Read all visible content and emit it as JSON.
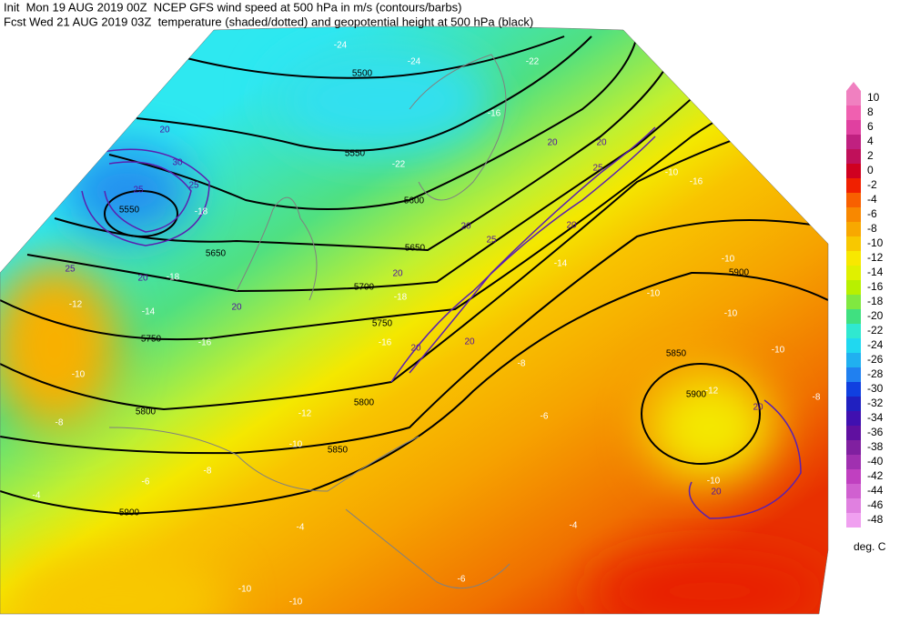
{
  "header": {
    "line1": "Init  Mon 19 AUG 2019 00Z  NCEP GFS wind speed at 500 hPa in m/s (contours/barbs)",
    "line2": "Fcst Wed 21 AUG 2019 03Z  temperature (shaded/dotted) and geopotential height at 500 hPa (black)"
  },
  "colorbar": {
    "labels": [
      10,
      8,
      6,
      4,
      2,
      0,
      -2,
      -4,
      -6,
      -8,
      -10,
      -12,
      -14,
      -16,
      -18,
      -20,
      -22,
      -24,
      -26,
      -28,
      -30,
      -32,
      -34,
      -36,
      -38,
      -40,
      -42,
      -44,
      -46,
      -48
    ],
    "colors": [
      "#f080c0",
      "#f060b0",
      "#e040a0",
      "#c02080",
      "#c0105a",
      "#d00020",
      "#f02000",
      "#f86000",
      "#f88800",
      "#f8a800",
      "#f8c800",
      "#f8e800",
      "#e0f000",
      "#b8f000",
      "#80e840",
      "#40e080",
      "#30e8d0",
      "#20d8f0",
      "#20b0f0",
      "#2080f0",
      "#1040e0",
      "#2020c0",
      "#4010b0",
      "#6010a0",
      "#8020a0",
      "#a030b0",
      "#c040c0",
      "#d060d0",
      "#e080e0",
      "#f0a0f0"
    ],
    "unit": "deg. C"
  },
  "map": {
    "heights": [
      "5500",
      "5550",
      "5600",
      "5650",
      "5700",
      "5750",
      "5750",
      "5800",
      "5800",
      "5850",
      "5850",
      "5900",
      "5900",
      "5900",
      "5650",
      "5550"
    ],
    "temperatures": [
      "-24",
      "-24",
      "-22",
      "-22",
      "-18",
      "-18",
      "-18",
      "-16",
      "-16",
      "-14",
      "-12",
      "-12",
      "-10",
      "-10",
      "-10",
      "-10",
      "-10",
      "-10",
      "-10",
      "-10",
      "-10",
      "-10",
      "-8",
      "-8",
      "-8",
      "-8",
      "-6",
      "-6",
      "-6",
      "-4",
      "-4",
      "-4",
      "-16",
      "-16",
      "-14",
      "-12"
    ],
    "winds": [
      "30",
      "25",
      "25",
      "20",
      "25",
      "20",
      "20",
      "20",
      "20",
      "25",
      "20",
      "20",
      "20",
      "25",
      "20",
      "20",
      "20",
      "20"
    ]
  }
}
